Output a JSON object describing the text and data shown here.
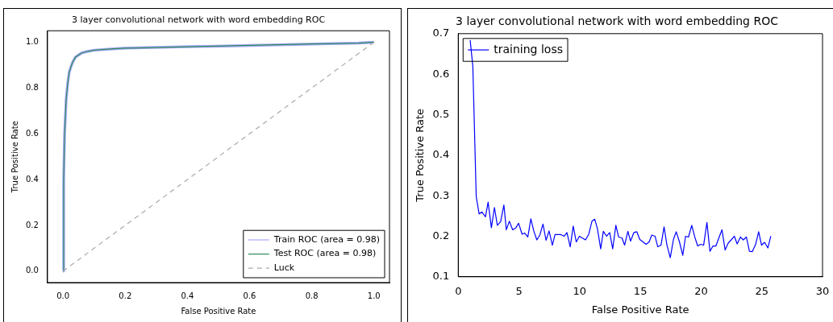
{
  "chart_data": [
    {
      "type": "line",
      "title": "3 layer convolutional network with word embedding ROC",
      "xlabel": "False Positive Rate",
      "ylabel": "True Positive Rate",
      "xlim": [
        -0.05,
        1.05
      ],
      "ylim": [
        -0.05,
        1.05
      ],
      "xticks": [
        {
          "value": 0,
          "label": "0.0"
        },
        {
          "value": 0.2,
          "label": "0.2"
        },
        {
          "value": 0.4,
          "label": "0.4"
        },
        {
          "value": 0.6,
          "label": "0.6"
        },
        {
          "value": 0.8,
          "label": "0.8"
        },
        {
          "value": 1,
          "label": "1.0"
        }
      ],
      "yticks": [
        {
          "value": 0,
          "label": "0.0"
        },
        {
          "value": 0.2,
          "label": "0.2"
        },
        {
          "value": 0.4,
          "label": "0.4"
        },
        {
          "value": 0.6,
          "label": "0.6"
        },
        {
          "value": 0.8,
          "label": "0.8"
        },
        {
          "value": 1,
          "label": "1.0"
        }
      ],
      "legend": "bottom right",
      "marker": "none",
      "series": [
        {
          "name": "Train ROC (area = 0.98)",
          "color": "#aaaaff",
          "x": [
            0,
            0.002,
            0.005,
            0.01,
            0.015,
            0.02,
            0.03,
            0.04,
            0.06,
            0.08,
            0.1,
            0.15,
            0.2,
            0.4,
            0.6,
            0.8,
            0.95,
            1
          ],
          "values": [
            0,
            0.4,
            0.6,
            0.75,
            0.82,
            0.87,
            0.91,
            0.935,
            0.953,
            0.96,
            0.965,
            0.97,
            0.974,
            0.98,
            0.986,
            0.992,
            0.996,
            1
          ]
        },
        {
          "name": "Test ROC (area = 0.98)",
          "color": "#2e8b57",
          "x": [
            0,
            0.002,
            0.005,
            0.01,
            0.015,
            0.02,
            0.03,
            0.04,
            0.06,
            0.08,
            0.1,
            0.15,
            0.2,
            0.4,
            0.6,
            0.8,
            0.95,
            1
          ],
          "values": [
            0,
            0.4,
            0.6,
            0.75,
            0.82,
            0.87,
            0.91,
            0.935,
            0.953,
            0.96,
            0.965,
            0.97,
            0.974,
            0.98,
            0.986,
            0.992,
            0.996,
            1
          ]
        },
        {
          "name": "Luck",
          "color": "#aaaaaa",
          "line_style": "dashed",
          "x": [
            0,
            1
          ],
          "values": [
            0,
            1
          ]
        }
      ]
    },
    {
      "type": "line",
      "title": "3 layer convolutional network with word embedding ROC",
      "xlabel": "False Positive Rate",
      "ylabel": "True Positive Rate",
      "xlim": [
        0,
        30
      ],
      "ylim": [
        0.1,
        0.7
      ],
      "xticks": [
        0,
        5,
        10,
        15,
        20,
        25,
        30
      ],
      "yticks": [
        0.1,
        0.2,
        0.3,
        0.4,
        0.5,
        0.6,
        0.7
      ],
      "legend": "top left",
      "marker": "none",
      "series": [
        {
          "name": "training loss",
          "color": "#0000ff",
          "x": [
            0.98,
            1.2,
            1.48,
            1.72,
            1.95,
            2.24,
            2.46,
            2.73,
            2.98,
            3.22,
            3.49,
            3.76,
            3.96,
            4.21,
            4.48,
            4.75,
            4.97,
            5.26,
            5.46,
            5.73,
            5.98,
            6.22,
            6.47,
            6.72,
            6.98,
            7.23,
            7.48,
            7.75,
            7.97,
            8.46,
            8.73,
            8.95,
            9.22,
            9.47,
            9.72,
            9.98,
            10.48,
            10.75,
            11.01,
            11.24,
            11.46,
            11.73,
            11.95,
            12.22,
            12.47,
            12.72,
            12.98,
            13.21,
            13.48,
            13.7,
            13.97,
            14.19,
            14.46,
            14.71,
            14.95,
            15.22,
            15.47,
            15.72,
            15.94,
            16.21,
            16.43,
            16.7,
            16.95,
            17.19,
            17.46,
            17.73,
            17.95,
            18.22,
            18.49,
            18.72,
            18.96,
            19.23,
            19.48,
            19.72,
            19.97,
            20.21,
            20.48,
            20.73,
            20.98,
            21.22,
            21.49,
            21.72,
            21.98,
            22.23,
            22.48,
            22.74,
            22.97,
            23.24,
            23.48,
            23.73,
            23.98,
            24.22,
            24.49,
            24.74,
            24.98,
            25.23,
            25.5,
            25.74
          ],
          "values": [
            0.684,
            0.62,
            0.298,
            0.255,
            0.26,
            0.248,
            0.284,
            0.221,
            0.271,
            0.227,
            0.236,
            0.277,
            0.216,
            0.237,
            0.216,
            0.221,
            0.232,
            0.205,
            0.208,
            0.198,
            0.243,
            0.213,
            0.191,
            0.203,
            0.23,
            0.19,
            0.213,
            0.178,
            0.204,
            0.204,
            0.2,
            0.209,
            0.174,
            0.225,
            0.186,
            0.2,
            0.191,
            0.205,
            0.237,
            0.242,
            0.219,
            0.169,
            0.212,
            0.2,
            0.209,
            0.169,
            0.227,
            0.198,
            0.196,
            0.178,
            0.212,
            0.188,
            0.209,
            0.211,
            0.192,
            0.186,
            0.18,
            0.186,
            0.203,
            0.2,
            0.174,
            0.178,
            0.223,
            0.178,
            0.147,
            0.193,
            0.211,
            0.186,
            0.153,
            0.2,
            0.198,
            0.227,
            0.198,
            0.176,
            0.18,
            0.178,
            0.234,
            0.163,
            0.176,
            0.176,
            0.198,
            0.216,
            0.166,
            0.183,
            0.191,
            0.2,
            0.181,
            0.198,
            0.191,
            0.198,
            0.163,
            0.162,
            0.18,
            0.211,
            0.178,
            0.185,
            0.171,
            0.2
          ]
        }
      ]
    }
  ]
}
